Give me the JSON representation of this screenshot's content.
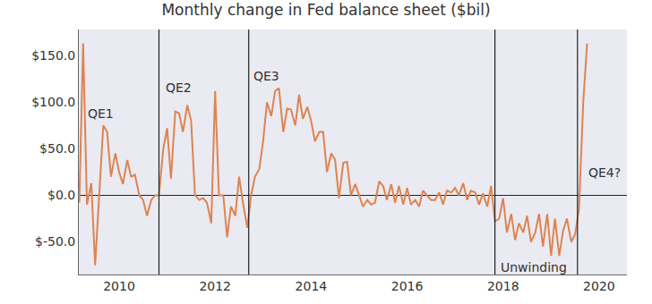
{
  "chart_data": {
    "type": "line",
    "title": "Monthly change in Fed balance sheet ($bil)",
    "color": "#dd8452",
    "grid": false,
    "x": [
      2009.17,
      2009.25,
      2009.33,
      2009.42,
      2009.5,
      2009.58,
      2009.67,
      2009.75,
      2009.83,
      2009.92,
      2010.0,
      2010.08,
      2010.17,
      2010.25,
      2010.33,
      2010.42,
      2010.5,
      2010.58,
      2010.67,
      2010.75,
      2010.83,
      2010.92,
      2011.0,
      2011.08,
      2011.17,
      2011.25,
      2011.33,
      2011.42,
      2011.5,
      2011.58,
      2011.67,
      2011.75,
      2011.83,
      2011.92,
      2012.0,
      2012.08,
      2012.17,
      2012.25,
      2012.33,
      2012.42,
      2012.5,
      2012.58,
      2012.67,
      2012.75,
      2012.83,
      2012.92,
      2013.0,
      2013.08,
      2013.17,
      2013.25,
      2013.33,
      2013.42,
      2013.5,
      2013.58,
      2013.67,
      2013.75,
      2013.83,
      2013.92,
      2014.0,
      2014.08,
      2014.17,
      2014.25,
      2014.33,
      2014.42,
      2014.5,
      2014.58,
      2014.67,
      2014.75,
      2014.83,
      2014.92,
      2015.0,
      2015.08,
      2015.17,
      2015.25,
      2015.33,
      2015.42,
      2015.5,
      2015.58,
      2015.67,
      2015.75,
      2015.83,
      2015.92,
      2016.0,
      2016.08,
      2016.17,
      2016.25,
      2016.33,
      2016.42,
      2016.5,
      2016.58,
      2016.67,
      2016.75,
      2016.83,
      2016.92,
      2017.0,
      2017.08,
      2017.17,
      2017.25,
      2017.33,
      2017.42,
      2017.5,
      2017.58,
      2017.67,
      2017.75,
      2017.83,
      2017.92,
      2018.0,
      2018.08,
      2018.17,
      2018.25,
      2018.33,
      2018.42,
      2018.5,
      2018.58,
      2018.67,
      2018.75,
      2018.83,
      2018.92,
      2019.0,
      2019.08,
      2019.17,
      2019.25,
      2019.33,
      2019.42,
      2019.5,
      2019.58,
      2019.67,
      2019.75
    ],
    "values": [
      -8,
      163,
      -10,
      13,
      -75,
      0,
      75,
      68,
      20,
      45,
      25,
      12,
      38,
      20,
      22,
      0,
      -5,
      -22,
      -5,
      0,
      0,
      50,
      72,
      18,
      90,
      88,
      68,
      97,
      80,
      0,
      -5,
      -3,
      -8,
      -30,
      112,
      0,
      0,
      -45,
      -12,
      -22,
      20,
      -8,
      -35,
      0,
      20,
      28,
      58,
      100,
      85,
      112,
      115,
      68,
      93,
      92,
      75,
      108,
      82,
      95,
      80,
      58,
      68,
      68,
      25,
      45,
      38,
      -3,
      35,
      36,
      0,
      12,
      0,
      -12,
      -5,
      -10,
      -8,
      15,
      10,
      -5,
      12,
      -8,
      10,
      -10,
      8,
      -10,
      -5,
      -12,
      5,
      0,
      -5,
      -5,
      3,
      -10,
      5,
      3,
      8,
      0,
      13,
      -5,
      5,
      3,
      -10,
      2,
      -12,
      10,
      -28,
      -25,
      -3,
      -40,
      -20,
      -48,
      -30,
      -40,
      -22,
      -50,
      -40,
      -20,
      -55,
      -20,
      -65,
      -25,
      -65,
      -38,
      -25,
      -50,
      -42,
      -15,
      100,
      163
    ],
    "xlim": [
      2009.16,
      2020.58
    ],
    "xticks": [
      2010,
      2012,
      2014,
      2016,
      2018,
      2020
    ],
    "ylim": [
      -85,
      178
    ],
    "yticks": [
      {
        "value": -50,
        "label": "$-50.0"
      },
      {
        "value": 0,
        "label": "$0.0"
      },
      {
        "value": 50,
        "label": "$50.0"
      },
      {
        "value": 100,
        "label": "$100.0"
      },
      {
        "value": 150,
        "label": "$150.0"
      }
    ],
    "vlines": [
      2010.83,
      2012.7,
      2017.83,
      2019.55
    ],
    "annotations": [
      {
        "text": "QE1",
        "x": 2009.3,
        "y": 88
      },
      {
        "text": "QE2",
        "x": 2010.93,
        "y": 116
      },
      {
        "text": "QE3",
        "x": 2012.76,
        "y": 128
      },
      {
        "text": "Unwinding",
        "x": 2017.91,
        "y": -77
      },
      {
        "text": "QE4?",
        "x": 2019.74,
        "y": 24
      }
    ]
  }
}
